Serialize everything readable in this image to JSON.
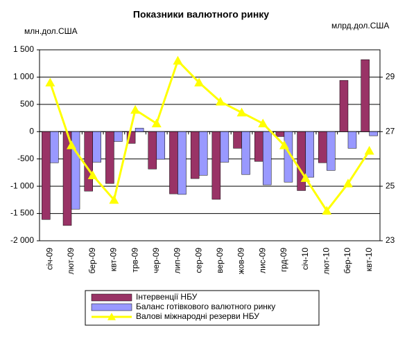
{
  "chart_data": {
    "type": "bar_line",
    "title": "Показники валютного ринку",
    "y_label": "млн.дол.США",
    "y2_label": "млрд.дол.США",
    "categories": [
      "січ-09",
      "лют-09",
      "бер-09",
      "квт-09",
      "трв-09",
      "чер-09",
      "лип-09",
      "сер-09",
      "вер-09",
      "жов-09",
      "лис-09",
      "грд-09",
      "січ-10",
      "лют-10",
      "бер-10",
      "квт-10"
    ],
    "series": [
      {
        "name": "Інтервенції НБУ",
        "type": "bar",
        "color": "#993366",
        "values": [
          -1610,
          -1720,
          -1090,
          -950,
          -215,
          -685,
          -1140,
          -860,
          -1240,
          -305,
          -545,
          -90,
          -1080,
          -570,
          940,
          1320
        ]
      },
      {
        "name": "Баланс готівкового валютного ринку",
        "type": "bar",
        "color": "#9999ff",
        "values": [
          -570,
          -1420,
          -560,
          -180,
          65,
          -505,
          -1150,
          -800,
          -560,
          -785,
          -975,
          -925,
          -835,
          -710,
          -305,
          -75
        ]
      },
      {
        "name": "Валові міжнародні резерви НБУ",
        "type": "line",
        "axis": "y2",
        "color": "#ffff00",
        "values": [
          28.8,
          26.5,
          25.4,
          24.5,
          27.8,
          27.3,
          29.6,
          28.8,
          28.1,
          27.7,
          27.3,
          26.5,
          25.3,
          24.1,
          25.1,
          26.3
        ]
      }
    ],
    "ylim": [
      -2000,
      1500
    ],
    "yticks": [
      {
        "value": -2000,
        "label": "-2 000"
      },
      {
        "value": -1500,
        "label": "-1 500"
      },
      {
        "value": -1000,
        "label": "-1 000"
      },
      -500,
      0,
      500,
      {
        "value": 1000,
        "label": "1 000"
      },
      {
        "value": 1500,
        "label": "1 500"
      }
    ],
    "y2lim": [
      23,
      30
    ],
    "y2ticks": [
      23,
      25,
      27,
      29
    ],
    "grid": true
  }
}
